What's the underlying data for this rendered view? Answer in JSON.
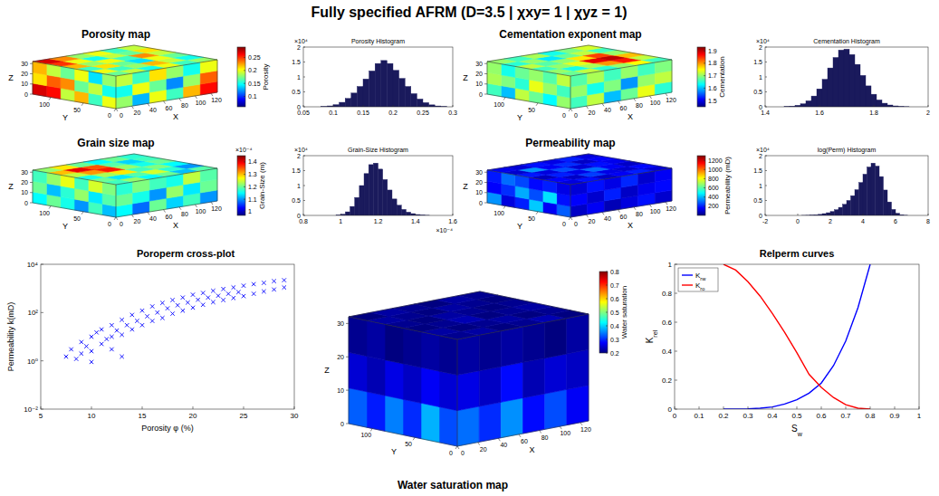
{
  "title": "Fully specified AFRM (D=3.5 | χxy= 1 | χyz = 1)",
  "chart_data": [
    {
      "type": "volume",
      "title": "Porosity map",
      "xlabel": "X",
      "ylabel": "Y",
      "zlabel": "Z",
      "xlim": [
        0,
        128
      ],
      "ylim": [
        0,
        128
      ],
      "zlim": [
        0,
        32
      ],
      "xticks": [
        0,
        20,
        40,
        60,
        80,
        100,
        120
      ],
      "yticks": [
        0,
        50,
        100
      ],
      "zticks": [
        0,
        10,
        20,
        30
      ],
      "top": [
        [
          0.17,
          0.19,
          0.15,
          0.2,
          0.16,
          0.18
        ],
        [
          0.2,
          0.16,
          0.18,
          0.22,
          0.19,
          0.15
        ],
        [
          0.16,
          0.21,
          0.17,
          0.14,
          0.2,
          0.17
        ],
        [
          0.22,
          0.18,
          0.2,
          0.16,
          0.23,
          0.19
        ],
        [
          0.25,
          0.2,
          0.15,
          0.19,
          0.17,
          0.21
        ],
        [
          0.27,
          0.23,
          0.18,
          0.2,
          0.16,
          0.19
        ]
      ],
      "side_x": [
        [
          0.18,
          0.13,
          0.2,
          0.16,
          0.22,
          0.26
        ],
        [
          0.15,
          0.2,
          0.17,
          0.12,
          0.18,
          0.24
        ],
        [
          0.19,
          0.16,
          0.21,
          0.18,
          0.15,
          0.2
        ]
      ],
      "side_y": [
        [
          0.2,
          0.16,
          0.22,
          0.19,
          0.26,
          0.27
        ],
        [
          0.15,
          0.19,
          0.17,
          0.23,
          0.24,
          0.21
        ],
        [
          0.18,
          0.14,
          0.2,
          0.17,
          0.19,
          0.22
        ]
      ],
      "clim": [
        0.06,
        0.29
      ],
      "cticks": [
        0.1,
        0.15,
        0.2,
        0.25
      ],
      "clabel": "Porosity"
    },
    {
      "type": "histogram",
      "title": "Porosity Histogram",
      "bins": [
        0.07,
        0.08,
        0.09,
        0.1,
        0.11,
        0.12,
        0.13,
        0.14,
        0.15,
        0.16,
        0.17,
        0.18,
        0.19,
        0.2,
        0.21,
        0.22,
        0.23,
        0.24,
        0.25,
        0.26,
        0.27,
        0.28,
        0.29
      ],
      "values": [
        0,
        0.01,
        0.03,
        0.07,
        0.15,
        0.28,
        0.46,
        0.68,
        0.93,
        1.2,
        1.45,
        1.55,
        1.45,
        1.22,
        0.95,
        0.68,
        0.44,
        0.26,
        0.14,
        0.065,
        0.028,
        0.01
      ],
      "xlim": [
        0.05,
        0.3
      ],
      "xticks": [
        0.05,
        0.1,
        0.15,
        0.2,
        0.25,
        0.3
      ],
      "ylim": [
        0,
        2
      ],
      "yticks": [
        0,
        0.5,
        1,
        1.5,
        2
      ],
      "y_multiplier": "×10⁴",
      "color": "#1a1a5c"
    },
    {
      "type": "volume",
      "title": "Cementation exponent map",
      "xlabel": "X",
      "ylabel": "Y",
      "zlabel": "Z",
      "xlim": [
        0,
        128
      ],
      "ylim": [
        0,
        128
      ],
      "zlim": [
        0,
        32
      ],
      "xticks": [
        0,
        20,
        40,
        60,
        80,
        100,
        120
      ],
      "yticks": [
        0,
        50,
        100
      ],
      "zticks": [
        0,
        10,
        20,
        30
      ],
      "top": [
        [
          1.68,
          1.72,
          1.65,
          1.7,
          1.75,
          1.66
        ],
        [
          1.7,
          1.64,
          1.71,
          1.8,
          1.86,
          1.72
        ],
        [
          1.66,
          1.7,
          1.74,
          1.88,
          1.9,
          1.78
        ],
        [
          1.72,
          1.67,
          1.7,
          1.76,
          1.84,
          1.7
        ],
        [
          1.65,
          1.7,
          1.62,
          1.68,
          1.72,
          1.66
        ],
        [
          1.7,
          1.66,
          1.71,
          1.64,
          1.69,
          1.73
        ]
      ],
      "side_x": [
        [
          1.66,
          1.72,
          1.6,
          1.68,
          1.74,
          1.65
        ],
        [
          1.7,
          1.64,
          1.69,
          1.58,
          1.7,
          1.72
        ],
        [
          1.67,
          1.71,
          1.66,
          1.7,
          1.66,
          1.69
        ]
      ],
      "side_y": [
        [
          1.7,
          1.63,
          1.68,
          1.72,
          1.6,
          1.66
        ],
        [
          1.66,
          1.7,
          1.74,
          1.65,
          1.69,
          1.71
        ],
        [
          1.72,
          1.67,
          1.7,
          1.68,
          1.64,
          1.7
        ]
      ],
      "clim": [
        1.45,
        1.93
      ],
      "cticks": [
        1.5,
        1.6,
        1.7,
        1.8,
        1.9
      ],
      "clabel": "Cementation"
    },
    {
      "type": "histogram",
      "title": "Cementation Histogram",
      "bins": [
        1.45,
        1.47,
        1.49,
        1.51,
        1.53,
        1.55,
        1.57,
        1.59,
        1.61,
        1.63,
        1.65,
        1.67,
        1.69,
        1.71,
        1.73,
        1.75,
        1.77,
        1.79,
        1.81,
        1.83,
        1.85,
        1.87,
        1.89,
        1.91,
        1.93,
        1.95
      ],
      "values": [
        0,
        0.01,
        0.02,
        0.05,
        0.1,
        0.2,
        0.36,
        0.6,
        0.92,
        1.3,
        1.65,
        1.9,
        1.93,
        1.75,
        1.42,
        1.05,
        0.7,
        0.42,
        0.23,
        0.12,
        0.06,
        0.03,
        0.012,
        0.005,
        0
      ],
      "xlim": [
        1.4,
        2
      ],
      "xticks": [
        1.4,
        1.6,
        1.8,
        2
      ],
      "ylim": [
        0,
        2
      ],
      "yticks": [
        0,
        0.5,
        1,
        1.5,
        2
      ],
      "y_multiplier": "×10⁴",
      "color": "#1a1a5c"
    },
    {
      "type": "volume",
      "title": "Grain size map",
      "xlabel": "X",
      "ylabel": "Y",
      "zlabel": "Z",
      "xlim": [
        0,
        128
      ],
      "ylim": [
        0,
        128
      ],
      "zlim": [
        0,
        32
      ],
      "xticks": [
        0,
        20,
        40,
        60,
        80,
        100,
        120
      ],
      "yticks": [
        0,
        50,
        100
      ],
      "zticks": [
        0,
        10,
        20,
        30
      ],
      "top": [
        [
          1.18,
          1.22,
          1.15,
          1.2,
          1.12,
          1.19
        ],
        [
          1.2,
          1.14,
          1.19,
          1.25,
          1.17,
          1.1
        ],
        [
          1.16,
          1.23,
          1.28,
          1.18,
          1.21,
          1.15
        ],
        [
          1.24,
          1.32,
          1.38,
          1.22,
          1.16,
          1.2
        ],
        [
          1.3,
          1.4,
          1.35,
          1.19,
          1.13,
          1.18
        ],
        [
          1.22,
          1.28,
          1.2,
          1.15,
          1.2,
          1.17
        ]
      ],
      "side_x": [
        [
          1.15,
          1.08,
          1.2,
          1.13,
          1.18,
          1.1
        ],
        [
          1.2,
          1.16,
          1.1,
          1.22,
          1.14,
          1.2
        ],
        [
          1.17,
          1.21,
          1.18,
          1.16,
          1.24,
          1.19
        ]
      ],
      "side_y": [
        [
          1.12,
          1.18,
          1.1,
          1.16,
          1.2,
          1.15
        ],
        [
          1.19,
          1.14,
          1.22,
          1.17,
          1.12,
          1.2
        ],
        [
          1.21,
          1.25,
          1.18,
          1.26,
          1.22,
          1.18
        ]
      ],
      "clim": [
        0.97,
        1.45
      ],
      "cticks": [
        1,
        1.1,
        1.2,
        1.3,
        1.4
      ],
      "clabel": "Grain-Size (m)",
      "c_multiplier": "×10⁻⁴"
    },
    {
      "type": "histogram",
      "title": "Grain-Size Histogram",
      "bins": [
        0.95,
        0.975,
        1,
        1.025,
        1.05,
        1.075,
        1.1,
        1.125,
        1.15,
        1.175,
        1.2,
        1.225,
        1.25,
        1.275,
        1.3,
        1.325,
        1.35,
        1.375,
        1.4,
        1.425,
        1.45,
        1.475,
        1.5
      ],
      "values": [
        0,
        0.01,
        0.04,
        0.12,
        0.3,
        0.6,
        1,
        1.4,
        1.7,
        1.75,
        1.55,
        1.2,
        0.85,
        0.55,
        0.34,
        0.2,
        0.11,
        0.06,
        0.03,
        0.012,
        0.004,
        0
      ],
      "xlim": [
        0.8,
        1.6
      ],
      "xticks": [
        0.8,
        1,
        1.2,
        1.4,
        1.6
      ],
      "ylim": [
        0,
        2
      ],
      "yticks": [
        0,
        0.5,
        1,
        1.5,
        2
      ],
      "y_multiplier": "×10⁴",
      "x_multiplier": "×10⁻⁴",
      "color": "#1a1a5c"
    },
    {
      "type": "volume",
      "title": "Permeability map",
      "xlabel": "X",
      "ylabel": "Y",
      "zlabel": "Z",
      "xlim": [
        0,
        128
      ],
      "ylim": [
        0,
        128
      ],
      "zlim": [
        0,
        32
      ],
      "xticks": [
        0,
        20,
        40,
        60,
        80,
        100,
        120
      ],
      "yticks": [
        0,
        50,
        100
      ],
      "zticks": [
        0,
        10,
        20,
        30
      ],
      "top": [
        [
          120,
          180,
          90,
          150,
          200,
          110
        ],
        [
          160,
          90,
          240,
          130,
          100,
          170
        ],
        [
          80,
          200,
          130,
          300,
          150,
          90
        ],
        [
          190,
          120,
          260,
          110,
          180,
          140
        ],
        [
          100,
          350,
          150,
          220,
          90,
          160
        ],
        [
          140,
          110,
          180,
          130,
          200,
          120
        ]
      ],
      "side_x": [
        [
          90,
          150,
          70,
          120,
          180,
          100
        ],
        [
          160,
          100,
          200,
          90,
          140,
          170
        ],
        [
          110,
          180,
          130,
          210,
          100,
          150
        ]
      ],
      "side_y": [
        [
          280,
          150,
          420,
          200,
          120,
          350
        ],
        [
          180,
          450,
          260,
          380,
          220,
          160
        ],
        [
          130,
          200,
          170,
          250,
          300,
          190
        ]
      ],
      "clim": [
        0,
        1300
      ],
      "cticks": [
        200,
        400,
        600,
        800,
        1000,
        1200
      ],
      "clabel": "Permeability (mD)"
    },
    {
      "type": "histogram",
      "title": "log(Perm) Histogram",
      "bins": [
        0,
        0.25,
        0.5,
        0.75,
        1,
        1.25,
        1.5,
        1.75,
        2,
        2.25,
        2.5,
        2.75,
        3,
        3.25,
        3.5,
        3.75,
        4,
        4.25,
        4.5,
        4.75,
        5,
        5.25,
        5.5,
        5.75,
        6,
        6.25,
        6.5,
        6.75,
        7
      ],
      "values": [
        0,
        0.002,
        0.005,
        0.01,
        0.02,
        0.035,
        0.06,
        0.09,
        0.13,
        0.19,
        0.27,
        0.37,
        0.5,
        0.66,
        0.86,
        1.1,
        1.38,
        1.62,
        1.75,
        1.65,
        1.3,
        0.85,
        0.45,
        0.2,
        0.07,
        0.02,
        0.005,
        0
      ],
      "xlim": [
        -2,
        8
      ],
      "xticks": [
        -2,
        0,
        2,
        4,
        6,
        8
      ],
      "ylim": [
        0,
        2
      ],
      "yticks": [
        0,
        0.5,
        1,
        1.5,
        2
      ],
      "y_multiplier": "×10⁴",
      "color": "#1a1a5c"
    },
    {
      "type": "scatter",
      "title": "Poroperm cross-plot",
      "xlabel": "Porosity φ (%)",
      "ylabel": "Permeability k(mD)",
      "x": [
        7.5,
        8,
        8.5,
        9,
        9,
        9.5,
        10,
        10,
        10.5,
        11,
        11,
        11.5,
        12,
        12,
        12.5,
        13,
        13,
        13.5,
        14,
        14,
        14.5,
        15,
        15,
        15.5,
        16,
        16,
        16.5,
        17,
        17,
        17.5,
        18,
        18,
        18.5,
        19,
        19,
        19.5,
        20,
        20,
        20.5,
        21,
        21,
        21.5,
        22,
        22,
        22.5,
        23,
        23,
        23.5,
        24,
        24,
        24.5,
        25,
        25,
        26,
        26,
        27,
        27,
        28,
        28,
        29,
        29,
        10,
        12,
        13
      ],
      "values": [
        1.5,
        3,
        1.2,
        6,
        2,
        4,
        10,
        2.5,
        15,
        5,
        20,
        8,
        30,
        10,
        18,
        50,
        12,
        30,
        80,
        20,
        45,
        120,
        30,
        70,
        180,
        45,
        100,
        250,
        60,
        150,
        330,
        90,
        200,
        420,
        120,
        260,
        550,
        160,
        340,
        650,
        210,
        420,
        800,
        270,
        500,
        950,
        330,
        600,
        1100,
        400,
        700,
        1300,
        480,
        1500,
        600,
        1700,
        750,
        2000,
        900,
        2200,
        1100,
        0.9,
        3,
        1.5
      ],
      "xlim": [
        5,
        30
      ],
      "xticks": [
        5,
        10,
        15,
        20,
        25,
        30
      ],
      "ylim": [
        0.01,
        10000
      ],
      "log": "y",
      "yticks": [
        {
          "value": 0.01,
          "label": "10⁻²"
        },
        {
          "value": 1,
          "label": "10⁰"
        },
        {
          "value": 100,
          "label": "10²"
        },
        {
          "value": 10000,
          "label": "10⁴"
        }
      ],
      "color": "#0000ff",
      "marker": "x"
    },
    {
      "type": "volume",
      "title": "Water saturation map",
      "xlabel": "X",
      "ylabel": "Y",
      "zlabel": "Z",
      "xlim": [
        0,
        128
      ],
      "ylim": [
        0,
        128
      ],
      "zlim": [
        0,
        32
      ],
      "xticks": [
        0,
        20,
        40,
        60,
        80,
        100,
        120
      ],
      "yticks": [
        0,
        50,
        100
      ],
      "zticks": [
        0,
        10,
        20,
        30
      ],
      "top": [
        [
          0.21,
          0.22,
          0.2,
          0.21,
          0.23,
          0.2
        ],
        [
          0.22,
          0.2,
          0.21,
          0.22,
          0.2,
          0.21
        ],
        [
          0.2,
          0.21,
          0.23,
          0.2,
          0.21,
          0.22
        ],
        [
          0.21,
          0.2,
          0.22,
          0.21,
          0.2,
          0.21
        ],
        [
          0.22,
          0.21,
          0.2,
          0.22,
          0.21,
          0.2
        ],
        [
          0.2,
          0.22,
          0.21,
          0.2,
          0.22,
          0.21
        ]
      ],
      "side_x": [
        [
          0.34,
          0.3,
          0.36,
          0.28,
          0.32,
          0.27
        ],
        [
          0.26,
          0.24,
          0.28,
          0.23,
          0.25,
          0.24
        ],
        [
          0.22,
          0.21,
          0.22,
          0.21,
          0.2,
          0.22
        ]
      ],
      "side_y": [
        [
          0.32,
          0.38,
          0.3,
          0.35,
          0.29,
          0.33
        ],
        [
          0.25,
          0.27,
          0.24,
          0.26,
          0.23,
          0.25
        ],
        [
          0.21,
          0.22,
          0.21,
          0.2,
          0.22,
          0.21
        ]
      ],
      "clim": [
        0.2,
        0.8
      ],
      "cticks": [
        0.2,
        0.3,
        0.4,
        0.5,
        0.6,
        0.7,
        0.8
      ],
      "clabel": "Water saturation"
    },
    {
      "type": "line",
      "title": "Relperm curves",
      "xlabel": "Sw",
      "ylabel": "Krel",
      "x": [
        0.2,
        0.25,
        0.3,
        0.35,
        0.4,
        0.45,
        0.5,
        0.55,
        0.6,
        0.65,
        0.7,
        0.75,
        0.8
      ],
      "series": [
        {
          "name": "Krw",
          "color": "#0000ff",
          "values": [
            0,
            0,
            0.002,
            0.006,
            0.015,
            0.035,
            0.065,
            0.11,
            0.18,
            0.3,
            0.47,
            0.7,
            1
          ]
        },
        {
          "name": "Kro",
          "color": "#ff0000",
          "values": [
            1,
            0.96,
            0.88,
            0.78,
            0.66,
            0.53,
            0.39,
            0.24,
            0.15,
            0.08,
            0.03,
            0.006,
            0
          ]
        }
      ],
      "xlim": [
        0,
        1
      ],
      "xticks": [
        0,
        0.1,
        0.2,
        0.3,
        0.4,
        0.5,
        0.6,
        0.7,
        0.8,
        0.9,
        1
      ],
      "ylim": [
        0,
        1
      ],
      "yticks": [
        0,
        0.2,
        0.4,
        0.6,
        0.8,
        1
      ],
      "legend": "top-left"
    }
  ]
}
